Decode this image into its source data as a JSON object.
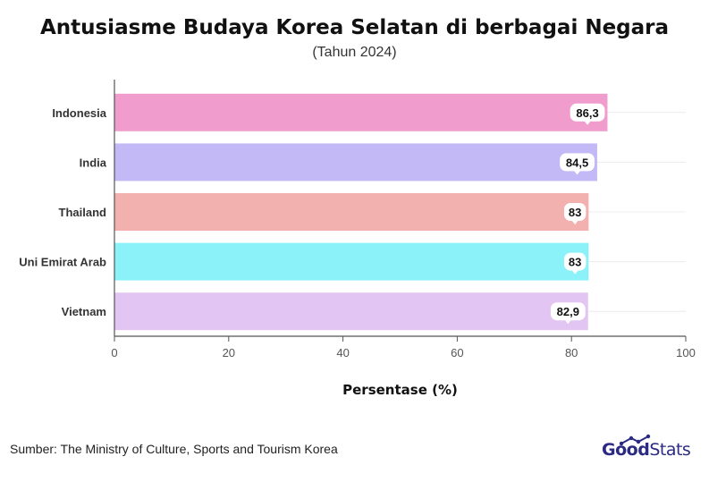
{
  "header": {
    "title": "Antusiasme Budaya Korea Selatan di berbagai Negara",
    "subtitle": "(Tahun 2024)"
  },
  "footer": {
    "source": "Sumber: The Ministry of Culture, Sports and Tourism Korea",
    "logo_text_bold": "Good",
    "logo_text_light": "Stats"
  },
  "chart_data": {
    "type": "bar",
    "orientation": "horizontal",
    "categories": [
      "Indonesia",
      "India",
      "Thailand",
      "Uni Emirat Arab",
      "Vietnam"
    ],
    "values": [
      86.3,
      84.5,
      83,
      83,
      82.9
    ],
    "value_labels": [
      "86,3",
      "84,5",
      "83",
      "83",
      "82,9"
    ],
    "colors": [
      "#f09ccd",
      "#c3b9f6",
      "#f2b0ae",
      "#8af2f8",
      "#e3c5f3"
    ],
    "xlabel": "Persentase (%)",
    "ylabel": "",
    "xlim": [
      0,
      100
    ],
    "xticks": [
      0,
      20,
      40,
      60,
      80,
      100
    ],
    "grid": true
  }
}
